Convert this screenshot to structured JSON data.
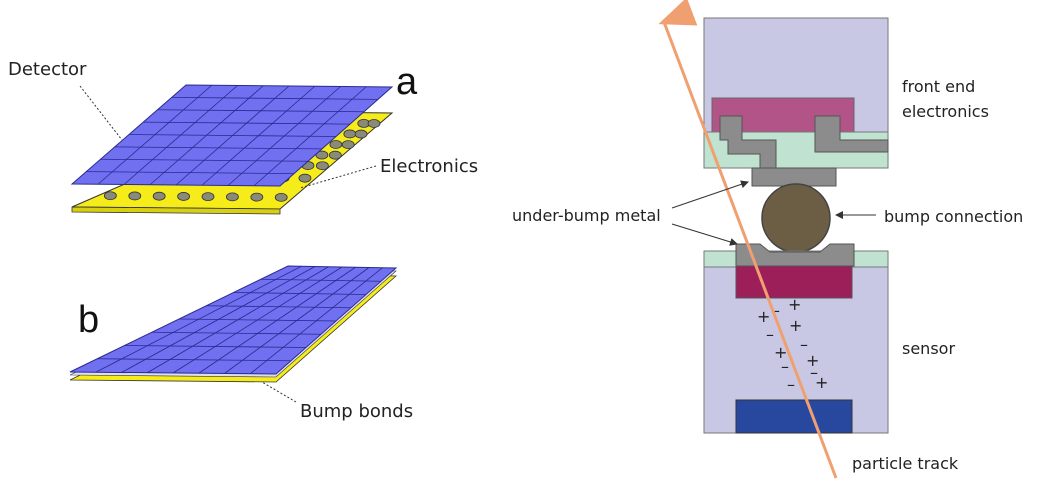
{
  "left_panel": {
    "label_detector": "Detector",
    "label_a": "a",
    "label_electronics": "Electronics",
    "label_b": "b",
    "label_bump_bonds": "Bump bonds"
  },
  "right_panel": {
    "label_front_end_line1": "front end",
    "label_front_end_line2": "electronics",
    "label_under_bump_metal": "under-bump metal",
    "label_bump_connection": "bump connection",
    "label_sensor": "sensor",
    "label_particle_track": "particle track",
    "charges": [
      "+",
      "–",
      "+",
      "–",
      "+",
      "–",
      "+",
      "–",
      "+",
      "–",
      "+",
      "–"
    ]
  },
  "colors": {
    "pixel_blue": "#7070f0",
    "pixel_grid": "#2a2a90",
    "electronics_yellow": "#f5ec1a",
    "bump_grey": "#8a8a7a",
    "chip_lavender": "#c8c8e4",
    "chip_magenta": "#b35488",
    "implant_magenta": "#9c1f5a",
    "backside_blue": "#2848a0",
    "passivation_green": "#bfe3d0",
    "metal_grey": "#8c8c8c",
    "bump_ball": "#6b5e45",
    "track_orange": "#f0a070"
  }
}
